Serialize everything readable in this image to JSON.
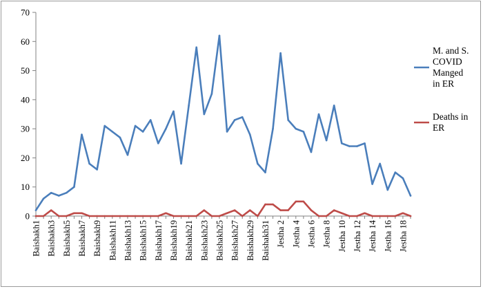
{
  "chart_data": {
    "type": "line",
    "title": "",
    "xlabel": "",
    "ylabel": "",
    "ylim": [
      0,
      70
    ],
    "yticks": [
      0,
      10,
      20,
      30,
      40,
      50,
      60,
      70
    ],
    "grid": false,
    "legend_position": "right",
    "x": [
      "Baishakh 1",
      "Baishakh 2",
      "Baishakh 3",
      "Baishakh 4",
      "Baishakh 5",
      "Baishakh 6",
      "Baishakh 7",
      "Baishakh 8",
      "Baishakh 9",
      "Baishakh 10",
      "Baishakh 11",
      "Baishakh 12",
      "Baishakh 13",
      "Baishakh 14",
      "Baishakh 15",
      "Baishakh 16",
      "Baishakh 17",
      "Baishakh 18",
      "Baishakh 19",
      "Baishakh 20",
      "Baishakh 21",
      "Baishakh 22",
      "Baishakh 23",
      "Baishakh 24",
      "Baishakh 25",
      "Baishakh 26",
      "Baishakh 27",
      "Baishakh 28",
      "Baishakh 29",
      "Baishakh 30",
      "Baishakh 31",
      "Jestha 1",
      "Jestha 2",
      "Jestha 3",
      "Jestha 4",
      "Jestha 5",
      "Jestha 6",
      "Jestha 7",
      "Jestha 8",
      "Jestha 9",
      "Jestha 10",
      "Jestha 11",
      "Jestha 12",
      "Jestha 13",
      "Jestha 14",
      "Jestha 15",
      "Jestha 16",
      "Jestha 17",
      "Jestha 18",
      "Jestha 19"
    ],
    "tick_labels": [
      "Baishakh1",
      "Baishakh3",
      "Baishakh5",
      "Baishakh7",
      "Baishakh9",
      "Baishakh11",
      "Baishakh13",
      "Baishakh15",
      "Baishakh17",
      "Baishakh19",
      "Baishakh21",
      "Baishakh23",
      "Baishakh25",
      "Baishakh27",
      "Baishakh29",
      "Baishakh31",
      "Jestha 2",
      "Jestha 4",
      "Jestha 6",
      "Jestha 8",
      "Jestha 10",
      "Jestha 12",
      "Jestha 14",
      "Jestha 16",
      "Jestha 18"
    ],
    "tick_every": 2,
    "series": [
      {
        "name": "M. and S. COVID Manged in ER",
        "legend_lines": [
          "M. and S.",
          "COVID",
          "Manged",
          "in ER"
        ],
        "color": "#4a7ebb",
        "values": [
          2,
          6,
          8,
          7,
          8,
          10,
          28,
          18,
          16,
          31,
          29,
          27,
          21,
          31,
          29,
          33,
          25,
          30,
          36,
          18,
          38,
          58,
          35,
          42,
          62,
          29,
          33,
          34,
          28,
          18,
          15,
          30,
          56,
          33,
          30,
          29,
          22,
          35,
          26,
          38,
          25,
          24,
          24,
          25,
          11,
          18,
          9,
          15,
          13,
          7
        ]
      },
      {
        "name": "Deaths in ER",
        "legend_lines": [
          "Deaths in",
          "ER"
        ],
        "color": "#be4b48",
        "values": [
          0,
          0,
          2,
          0,
          0,
          1,
          1,
          0,
          0,
          0,
          0,
          0,
          0,
          0,
          0,
          0,
          0,
          1,
          0,
          0,
          0,
          0,
          2,
          0,
          0,
          1,
          2,
          0,
          2,
          0,
          4,
          4,
          2,
          2,
          5,
          5,
          2,
          0,
          0,
          2,
          1,
          0,
          0,
          1,
          0,
          0,
          0,
          0,
          1,
          0
        ]
      }
    ]
  }
}
